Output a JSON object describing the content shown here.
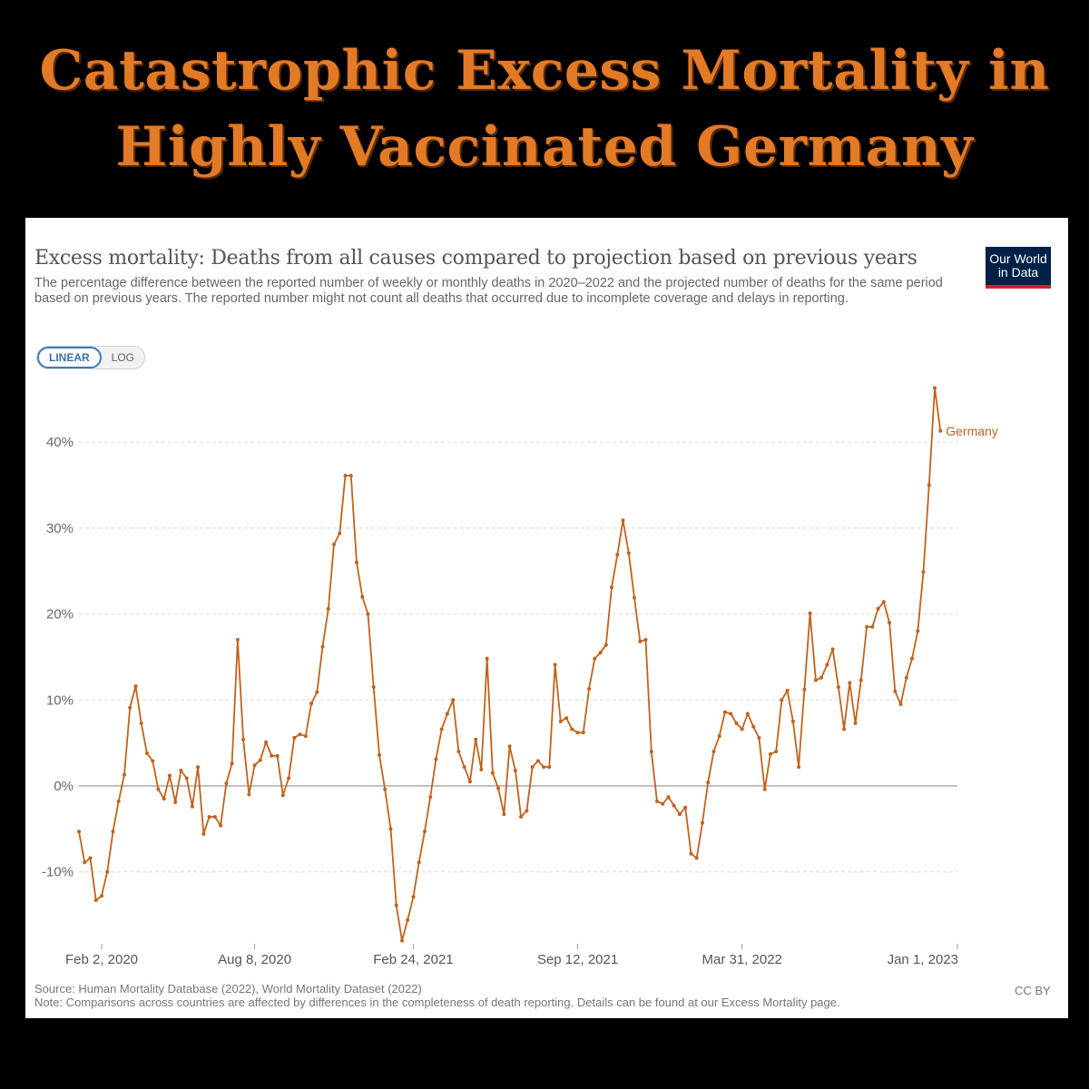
{
  "headline": {
    "line1": "Catastrophic Excess Mortality in",
    "line2": "Highly Vaccinated Germany"
  },
  "card": {
    "title": "Excess mortality: Deaths from all causes compared to projection based on previous years",
    "subtitle": "The percentage difference between the reported number of weekly or monthly deaths in 2020–2022 and the projected number of deaths for the same period based on previous years. The reported number might not count all deaths that occurred due to incomplete coverage and delays in reporting.",
    "logo_line1": "Our World",
    "logo_line2": "in Data",
    "scale_toggle": {
      "linear": "LINEAR",
      "log": "LOG",
      "selected": "LINEAR"
    },
    "source": "Source: Human Mortality Database (2022), World Mortality Dataset (2022)",
    "note": "Note: Comparisons across countries are affected by differences in the completeness of death reporting. Details can be found at our Excess Mortality page.",
    "license": "CC BY"
  },
  "colors": {
    "background": "#000000",
    "headline": "#e27a26",
    "series": "#c1621d",
    "logo_bg": "#002147",
    "logo_accent": "#ce261e"
  },
  "chart_data": {
    "type": "line",
    "x_unit": "weeks since Jan 5, 2020",
    "xticks": [
      {
        "label": "Feb 2, 2020",
        "x": 4
      },
      {
        "label": "Aug 8, 2020",
        "x": 31
      },
      {
        "label": "Feb 24, 2021",
        "x": 59
      },
      {
        "label": "Sep 12, 2021",
        "x": 88
      },
      {
        "label": "Mar 31, 2022",
        "x": 117
      },
      {
        "label": "Jan 1, 2023",
        "x": 155
      }
    ],
    "yticks": [
      {
        "label": "-10%",
        "value": -10
      },
      {
        "label": "0%",
        "value": 0
      },
      {
        "label": "10%",
        "value": 10
      },
      {
        "label": "20%",
        "value": 20
      },
      {
        "label": "30%",
        "value": 30
      },
      {
        "label": "40%",
        "value": 40
      }
    ],
    "ylim": [
      -18,
      46
    ],
    "xlim": [
      0,
      155
    ],
    "grid": true,
    "series": [
      {
        "name": "Germany",
        "x_start": 0,
        "x_step": 1,
        "values": [
          -5.3,
          -8.9,
          -8.4,
          -13.3,
          -12.8,
          -10.0,
          -5.3,
          -1.8,
          1.3,
          9.1,
          11.6,
          7.3,
          3.8,
          2.9,
          -0.4,
          -1.5,
          1.2,
          -1.9,
          1.8,
          0.9,
          -2.4,
          2.2,
          -5.6,
          -3.6,
          -3.6,
          -4.6,
          0.3,
          2.6,
          17.0,
          5.4,
          -1.0,
          2.4,
          3.0,
          5.1,
          3.5,
          3.5,
          -1.1,
          0.9,
          5.6,
          6.0,
          5.8,
          9.6,
          10.9,
          16.2,
          20.6,
          28.1,
          29.4,
          36.1,
          36.1,
          26.0,
          22.0,
          20.0,
          11.5,
          3.6,
          -0.4,
          -5.0,
          -13.9,
          -18.0,
          -15.6,
          -12.9,
          -8.9,
          -5.3,
          -1.3,
          3.1,
          6.6,
          8.4,
          10.0,
          4.0,
          2.2,
          0.5,
          5.4,
          1.9,
          14.8,
          1.5,
          -0.3,
          -3.3,
          4.6,
          1.8,
          -3.6,
          -2.9,
          2.2,
          2.9,
          2.2,
          2.2,
          14.1,
          7.5,
          7.9,
          6.6,
          6.2,
          6.2,
          11.3,
          14.8,
          15.5,
          16.4,
          23.1,
          26.9,
          30.9,
          27.1,
          21.9,
          16.8,
          17.0,
          4.0,
          -1.8,
          -2.1,
          -1.3,
          -2.3,
          -3.3,
          -2.5,
          -7.9,
          -8.4,
          -4.3,
          0.4,
          4.0,
          5.8,
          8.6,
          8.4,
          7.3,
          6.6,
          8.4,
          6.9,
          5.6,
          -0.4,
          3.7,
          4.0,
          10.0,
          11.1,
          7.5,
          2.2,
          11.2,
          20.1,
          12.3,
          12.6,
          14.1,
          15.9,
          11.5,
          6.6,
          12.0,
          7.3,
          12.3,
          18.5,
          18.5,
          20.6,
          21.4,
          19.0,
          11.0,
          9.5,
          12.6,
          14.8,
          18.0,
          24.9,
          35.0,
          46.3,
          41.3
        ]
      }
    ]
  }
}
